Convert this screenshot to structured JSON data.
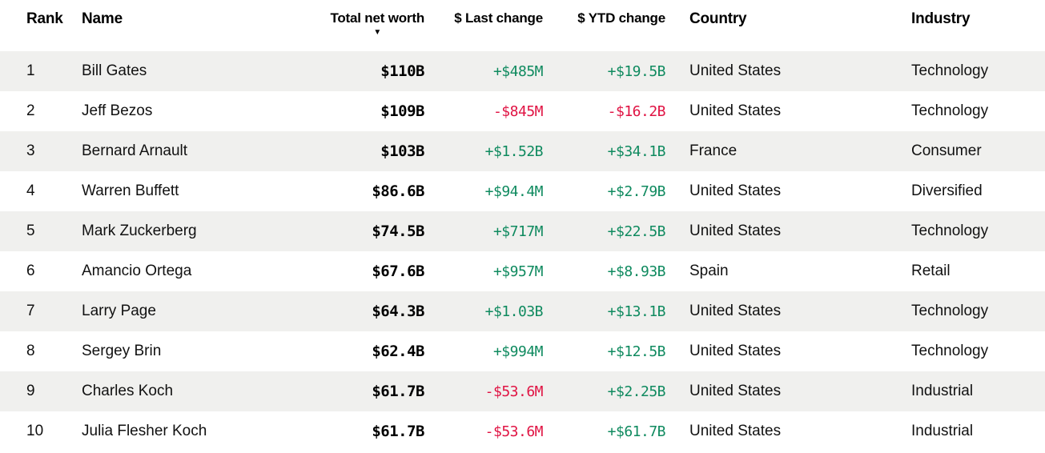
{
  "table": {
    "columns": [
      {
        "label": "Rank"
      },
      {
        "label": "Name"
      },
      {
        "label": "Total net worth",
        "sorted": "desc"
      },
      {
        "label": "$ Last change"
      },
      {
        "label": "$ YTD change"
      },
      {
        "label": "Country"
      },
      {
        "label": "Industry"
      }
    ],
    "sort_icon": "▼",
    "rows": [
      {
        "rank": "1",
        "name": "Bill Gates",
        "net_worth": "$110B",
        "last_change": "+$485M",
        "ytd_change": "+$19.5B",
        "country": "United States",
        "industry": "Technology"
      },
      {
        "rank": "2",
        "name": "Jeff Bezos",
        "net_worth": "$109B",
        "last_change": "-$845M",
        "ytd_change": "-$16.2B",
        "country": "United States",
        "industry": "Technology"
      },
      {
        "rank": "3",
        "name": "Bernard Arnault",
        "net_worth": "$103B",
        "last_change": "+$1.52B",
        "ytd_change": "+$34.1B",
        "country": "France",
        "industry": "Consumer"
      },
      {
        "rank": "4",
        "name": "Warren Buffett",
        "net_worth": "$86.6B",
        "last_change": "+$94.4M",
        "ytd_change": "+$2.79B",
        "country": "United States",
        "industry": "Diversified"
      },
      {
        "rank": "5",
        "name": "Mark Zuckerberg",
        "net_worth": "$74.5B",
        "last_change": "+$717M",
        "ytd_change": "+$22.5B",
        "country": "United States",
        "industry": "Technology"
      },
      {
        "rank": "6",
        "name": "Amancio Ortega",
        "net_worth": "$67.6B",
        "last_change": "+$957M",
        "ytd_change": "+$8.93B",
        "country": "Spain",
        "industry": "Retail"
      },
      {
        "rank": "7",
        "name": "Larry Page",
        "net_worth": "$64.3B",
        "last_change": "+$1.03B",
        "ytd_change": "+$13.1B",
        "country": "United States",
        "industry": "Technology"
      },
      {
        "rank": "8",
        "name": "Sergey Brin",
        "net_worth": "$62.4B",
        "last_change": "+$994M",
        "ytd_change": "+$12.5B",
        "country": "United States",
        "industry": "Technology"
      },
      {
        "rank": "9",
        "name": "Charles Koch",
        "net_worth": "$61.7B",
        "last_change": "-$53.6M",
        "ytd_change": "+$2.25B",
        "country": "United States",
        "industry": "Industrial"
      },
      {
        "rank": "10",
        "name": "Julia Flesher Koch",
        "net_worth": "$61.7B",
        "last_change": "-$53.6M",
        "ytd_change": "+$61.7B",
        "country": "United States",
        "industry": "Industrial"
      }
    ]
  },
  "colors": {
    "positive": "#0f8a5f",
    "negative": "#e01343",
    "stripe": "#f0f0ee"
  }
}
